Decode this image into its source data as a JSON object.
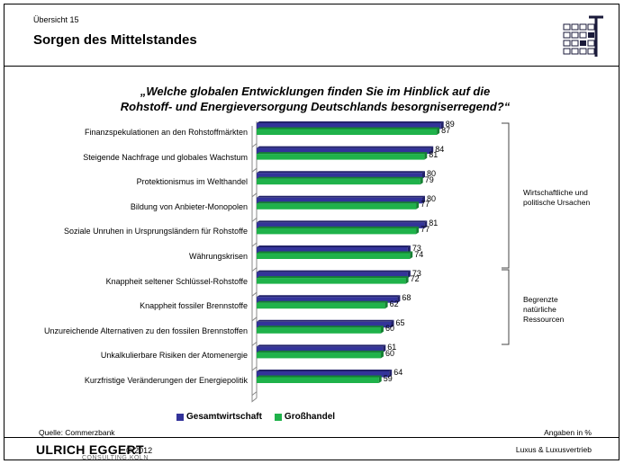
{
  "header": {
    "overline": "Übersicht 15",
    "title": "Sorgen des Mittelstandes"
  },
  "question_line1": "„Welche globalen Entwicklungen finden Sie im Hinblick auf die",
  "question_line2": "Rohstoff- und Energieversorgung Deutschlands besorgniserregend?“",
  "groups": {
    "g1": [
      "Wirtschaftliche und",
      "politische Ursachen"
    ],
    "g2": [
      "Begrenzte",
      "natürliche",
      "Ressourcen"
    ]
  },
  "legend": {
    "s1": "Gesamtwirtschaft",
    "s2": "Großhandel"
  },
  "footer": {
    "source": "Quelle: Commerzbank",
    "units": "Angaben in %",
    "brand": "ULRICH EGGERT",
    "year": "© 2012",
    "brand_sub": "CONSULTING.KÖLN",
    "right": "Luxus & Luxusvertrieb"
  },
  "colors": {
    "series1": "#33339a",
    "series2": "#1fb24a"
  },
  "chart_data": {
    "type": "bar",
    "orientation": "horizontal",
    "categories": [
      "Finanzspekulationen an den Rohstoffmärkten",
      "Steigende Nachfrage und globales Wachstum",
      "Protektionismus im Welthandel",
      "Bildung von Anbieter-Monopolen",
      "Soziale Unruhen in Ursprungsländern für Rohstoffe",
      "Währungskrisen",
      "Knappheit seltener Schlüssel-Rohstoffe",
      "Knappheit fossiler Brennstoffe",
      "Unzureichende Alternativen zu den fossilen Brennstoffen",
      "Unkalkulierbare Risiken der Atomenergie",
      "Kurzfristige Veränderungen der Energiepolitik"
    ],
    "series": [
      {
        "name": "Gesamtwirtschaft",
        "values": [
          89,
          84,
          80,
          80,
          81,
          73,
          73,
          68,
          65,
          61,
          64
        ]
      },
      {
        "name": "Großhandel",
        "values": [
          87,
          81,
          79,
          77,
          77,
          74,
          72,
          62,
          60,
          60,
          59
        ]
      }
    ],
    "xlim": [
      0,
      100
    ],
    "legend_position": "bottom",
    "grid": false
  }
}
